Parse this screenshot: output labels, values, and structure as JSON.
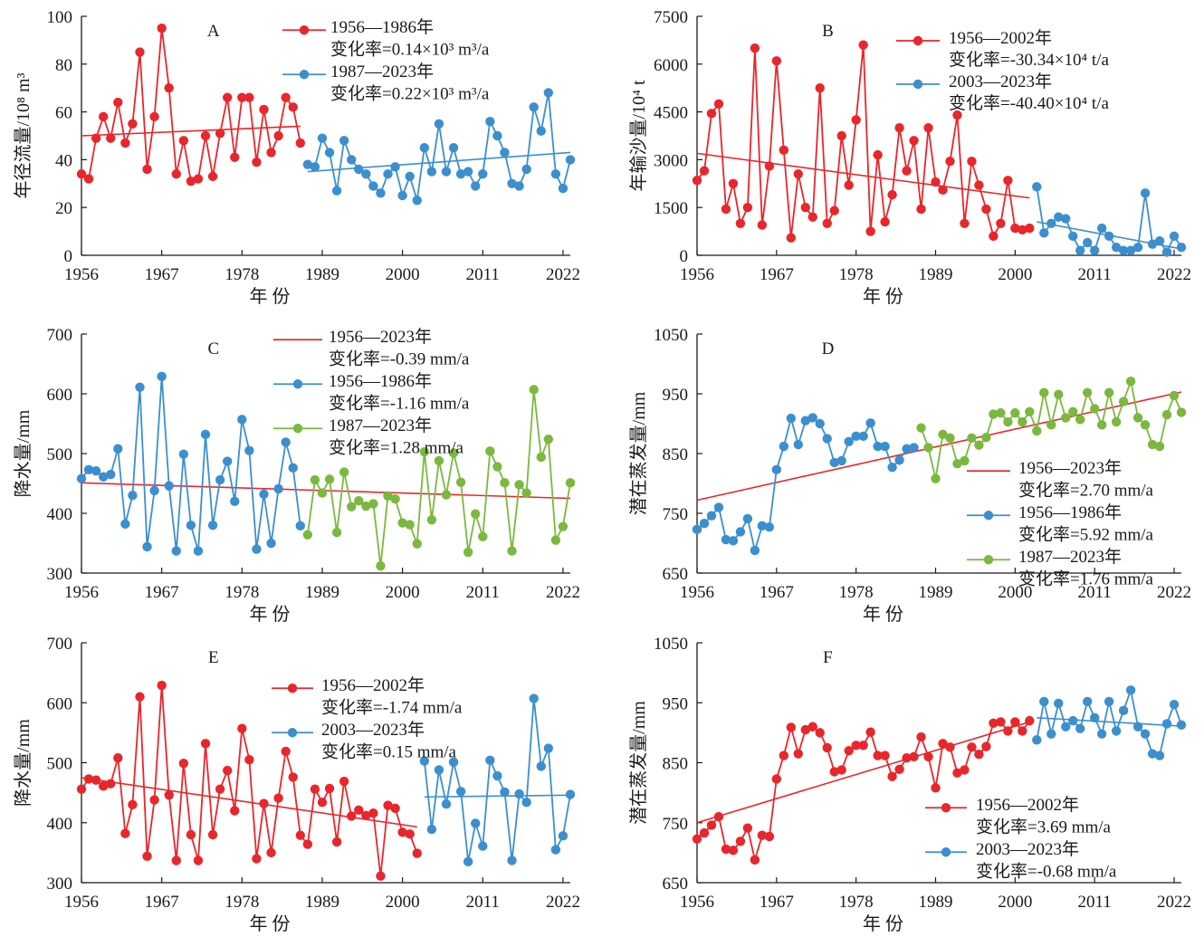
{
  "chart_data": [
    {
      "type": "line",
      "panel_label": "A",
      "xlabel": "年 份",
      "ylabel": "年径流量/10⁸ m³",
      "xlim": [
        1956,
        2023
      ],
      "ylim": [
        0,
        100
      ],
      "xticks": [
        1956,
        1967,
        1978,
        1989,
        2000,
        2011,
        2022
      ],
      "yticks": [
        "0",
        "20",
        "40",
        "60",
        "80",
        "100"
      ],
      "grid": false,
      "legend_position": "top-right",
      "series": [
        {
          "name": "1956—1986年",
          "color": "#e8262b",
          "marker": true,
          "start_year": 1956,
          "values": [
            34,
            32,
            49,
            58,
            49,
            64,
            47,
            55,
            85,
            36,
            58,
            95,
            70,
            34,
            48,
            31,
            32,
            50,
            33,
            51,
            66,
            41,
            66,
            66,
            39,
            61,
            43,
            50,
            66,
            62,
            47
          ],
          "legend_text": [
            "1956—1986年",
            "变化率=0.14×10³ m³/a"
          ]
        },
        {
          "name": "1987—2023年",
          "color": "#3b8fcf",
          "marker": true,
          "start_year": 1987,
          "values": [
            38,
            37,
            49,
            43,
            27,
            48,
            40,
            36,
            34,
            29,
            26,
            34,
            37,
            25,
            33,
            23,
            45,
            35,
            55,
            35,
            45,
            34,
            35,
            29,
            34,
            56,
            50,
            43,
            30,
            29,
            36,
            62,
            52,
            68,
            34,
            28,
            40
          ],
          "legend_text": [
            "1987—2023年",
            "变化率=0.22×10³ m³/a"
          ]
        }
      ],
      "trendlines": [
        {
          "color": "#e8262b",
          "x": [
            1956,
            1986
          ],
          "y": [
            50,
            54
          ]
        },
        {
          "color": "#3b8fcf",
          "x": [
            1987,
            2023
          ],
          "y": [
            35,
            43
          ]
        }
      ]
    },
    {
      "type": "line",
      "panel_label": "B",
      "xlabel": "年 份",
      "ylabel": "年输沙量/10⁴ t",
      "xlim": [
        1956,
        2023
      ],
      "ylim": [
        0,
        7500
      ],
      "xticks": [
        1956,
        1967,
        1978,
        1989,
        2000,
        2011,
        2022
      ],
      "yticks": [
        "0",
        "1500",
        "3000",
        "4500",
        "6000",
        "7500"
      ],
      "grid": false,
      "legend_position": "top-right",
      "series": [
        {
          "name": "1956—2002年",
          "color": "#e8262b",
          "marker": true,
          "start_year": 1956,
          "values": [
            2350,
            2650,
            4450,
            4750,
            1450,
            2250,
            1000,
            1500,
            6500,
            950,
            2800,
            6100,
            3300,
            550,
            2550,
            1500,
            1200,
            5250,
            1000,
            1400,
            3750,
            2200,
            4250,
            6600,
            750,
            3150,
            1050,
            1900,
            4000,
            2650,
            3600,
            1450,
            4000,
            2300,
            2050,
            2950,
            4400,
            1000,
            2950,
            2200,
            1450,
            600,
            1000,
            2350,
            850,
            800,
            850
          ],
          "legend_text": [
            "1956—2002年",
            "变化率=-30.34×10⁴ t/a"
          ]
        },
        {
          "name": "2003—2023年",
          "color": "#3b8fcf",
          "marker": true,
          "start_year": 2003,
          "values": [
            2150,
            700,
            1000,
            1200,
            1150,
            600,
            150,
            400,
            150,
            850,
            600,
            250,
            150,
            150,
            250,
            1950,
            350,
            450,
            100,
            600,
            250
          ],
          "legend_text": [
            "2003—2023年",
            "变化率=-40.40×10⁴ t/a"
          ]
        }
      ],
      "trendlines": [
        {
          "color": "#e8262b",
          "x": [
            1956,
            2002
          ],
          "y": [
            3200,
            1800
          ]
        },
        {
          "color": "#3b8fcf",
          "x": [
            2003,
            2023
          ],
          "y": [
            1050,
            200
          ]
        }
      ]
    },
    {
      "type": "line",
      "panel_label": "C",
      "xlabel": "年 份",
      "ylabel": "降水量/mm",
      "xlim": [
        1956,
        2023
      ],
      "ylim": [
        300,
        700
      ],
      "xticks": [
        1956,
        1967,
        1978,
        1989,
        2000,
        2011,
        2022
      ],
      "yticks": [
        "300",
        "400",
        "500",
        "600",
        "700"
      ],
      "grid": false,
      "legend_position": "top-right",
      "series": [
        {
          "name": "1956—1986年",
          "color": "#3b8fcf",
          "marker": true,
          "start_year": 1956,
          "values": [
            458,
            473,
            471,
            461,
            465,
            508,
            382,
            430,
            611,
            344,
            438,
            629,
            446,
            337,
            499,
            380,
            337,
            532,
            380,
            456,
            487,
            420,
            557,
            505,
            340,
            432,
            350,
            441,
            519,
            476,
            379
          ],
          "legend_text": [
            "1956—1986年",
            "变化率=-1.16 mm/a"
          ]
        },
        {
          "name": "1987—2023年",
          "color": "#7ab83e",
          "marker": true,
          "start_year": 1987,
          "values": [
            364,
            456,
            434,
            457,
            368,
            469,
            411,
            421,
            412,
            416,
            312,
            429,
            424,
            384,
            381,
            349,
            503,
            389,
            488,
            431,
            501,
            452,
            335,
            399,
            361,
            504,
            478,
            451,
            337,
            448,
            434,
            607,
            494,
            524,
            355,
            378,
            451
          ],
          "legend_text": [
            "1987—2023年",
            "变化率=1.28 mm/a"
          ]
        }
      ],
      "trendlines": [
        {
          "color": "#e8262b",
          "x": [
            1956,
            2023
          ],
          "y": [
            451,
            425
          ],
          "legend_text": [
            "1956—2023年",
            "变化率=-0.39 mm/a"
          ]
        }
      ]
    },
    {
      "type": "line",
      "panel_label": "D",
      "xlabel": "年 份",
      "ylabel": "潜在蒸发量/mm",
      "xlim": [
        1956,
        2023
      ],
      "ylim": [
        650,
        1050
      ],
      "xticks": [
        1956,
        1967,
        1978,
        1989,
        2000,
        2011,
        2022
      ],
      "yticks": [
        "650",
        "750",
        "850",
        "950",
        "1050"
      ],
      "grid": false,
      "legend_position": "bottom-right",
      "series": [
        {
          "name": "1956—1986年",
          "color": "#3b8fcf",
          "marker": true,
          "start_year": 1956,
          "values": [
            723,
            733,
            746,
            760,
            706,
            704,
            719,
            741,
            688,
            729,
            727,
            823,
            862,
            909,
            865,
            905,
            910,
            900,
            875,
            835,
            838,
            870,
            879,
            879,
            901,
            862,
            862,
            827,
            839,
            858,
            860
          ],
          "legend_text": [
            "1956—1986年",
            "变化率=5.92 mm/a"
          ]
        },
        {
          "name": "1987—2023年",
          "color": "#7ab83e",
          "marker": true,
          "start_year": 1987,
          "values": [
            893,
            860,
            808,
            882,
            876,
            833,
            838,
            876,
            864,
            877,
            916,
            918,
            903,
            918,
            903,
            920,
            888,
            952,
            898,
            949,
            910,
            920,
            907,
            952,
            925,
            898,
            952,
            903,
            937,
            971,
            910,
            898,
            865,
            862,
            915,
            947,
            919
          ],
          "legend_text": [
            "1987—2023年",
            "变化率=1.76 mm/a"
          ]
        }
      ],
      "trendlines": [
        {
          "color": "#e8262b",
          "x": [
            1956,
            2023
          ],
          "y": [
            772,
            953
          ],
          "legend_text": [
            "1956—2023年",
            "变化率=2.70 mm/a"
          ]
        }
      ]
    },
    {
      "type": "line",
      "panel_label": "E",
      "xlabel": "年 份",
      "ylabel": "降水量/mm",
      "xlim": [
        1956,
        2023
      ],
      "ylim": [
        300,
        700
      ],
      "xticks": [
        1956,
        1967,
        1978,
        1989,
        2000,
        2011,
        2022
      ],
      "yticks": [
        "300",
        "400",
        "500",
        "600",
        "700"
      ],
      "grid": false,
      "legend_position": "top-right",
      "series": [
        {
          "name": "1956—2002年",
          "color": "#e8262b",
          "marker": true,
          "start_year": 1956,
          "values": [
            456,
            473,
            471,
            461,
            465,
            508,
            382,
            430,
            610,
            344,
            438,
            629,
            446,
            337,
            499,
            380,
            337,
            532,
            380,
            456,
            487,
            420,
            557,
            505,
            340,
            432,
            350,
            441,
            519,
            476,
            379,
            364,
            456,
            434,
            457,
            368,
            469,
            411,
            421,
            412,
            416,
            311,
            429,
            424,
            384,
            381,
            349
          ],
          "legend_text": [
            "1956—2002年",
            "变化率=-1.74 mm/a"
          ]
        },
        {
          "name": "2003—2023年",
          "color": "#3b8fcf",
          "marker": true,
          "start_year": 2003,
          "values": [
            503,
            389,
            488,
            431,
            501,
            452,
            335,
            399,
            361,
            504,
            478,
            451,
            337,
            448,
            434,
            607,
            494,
            524,
            355,
            378,
            447
          ],
          "legend_text": [
            "2003—2023年",
            "变化率=0.15 mm/a"
          ]
        }
      ],
      "trendlines": [
        {
          "color": "#e8262b",
          "x": [
            1956,
            2002
          ],
          "y": [
            475,
            393
          ]
        },
        {
          "color": "#3b8fcf",
          "x": [
            2003,
            2023
          ],
          "y": [
            443,
            446
          ]
        }
      ]
    },
    {
      "type": "line",
      "panel_label": "F",
      "xlabel": "年 份",
      "ylabel": "潜在蒸发量/mm",
      "xlim": [
        1956,
        2023
      ],
      "ylim": [
        650,
        1050
      ],
      "xticks": [
        1956,
        1967,
        1978,
        1989,
        2000,
        2011,
        2022
      ],
      "yticks": [
        "650",
        "750",
        "850",
        "950",
        "1050"
      ],
      "grid": false,
      "legend_position": "bottom-right",
      "series": [
        {
          "name": "1956—2002年",
          "color": "#e8262b",
          "marker": true,
          "start_year": 1956,
          "values": [
            723,
            733,
            746,
            760,
            706,
            704,
            719,
            741,
            688,
            729,
            727,
            823,
            862,
            909,
            865,
            905,
            910,
            900,
            875,
            835,
            838,
            870,
            879,
            879,
            901,
            862,
            862,
            827,
            839,
            858,
            860,
            893,
            860,
            808,
            882,
            876,
            833,
            838,
            876,
            864,
            877,
            916,
            918,
            903,
            918,
            903,
            920
          ],
          "legend_text": [
            "1956—2002年",
            "变化率=3.69 mm/a"
          ]
        },
        {
          "name": "2003—2023年",
          "color": "#3b8fcf",
          "marker": true,
          "start_year": 2003,
          "values": [
            888,
            952,
            898,
            949,
            910,
            920,
            907,
            952,
            925,
            898,
            952,
            903,
            937,
            971,
            910,
            898,
            865,
            862,
            915,
            947,
            913
          ],
          "legend_text": [
            "2003—2023年",
            "变化率=-0.68 mm/a"
          ]
        }
      ],
      "trendlines": [
        {
          "color": "#e8262b",
          "x": [
            1956,
            2002
          ],
          "y": [
            750,
            918
          ]
        },
        {
          "color": "#3b8fcf",
          "x": [
            2003,
            2023
          ],
          "y": [
            925,
            911
          ]
        }
      ]
    }
  ]
}
